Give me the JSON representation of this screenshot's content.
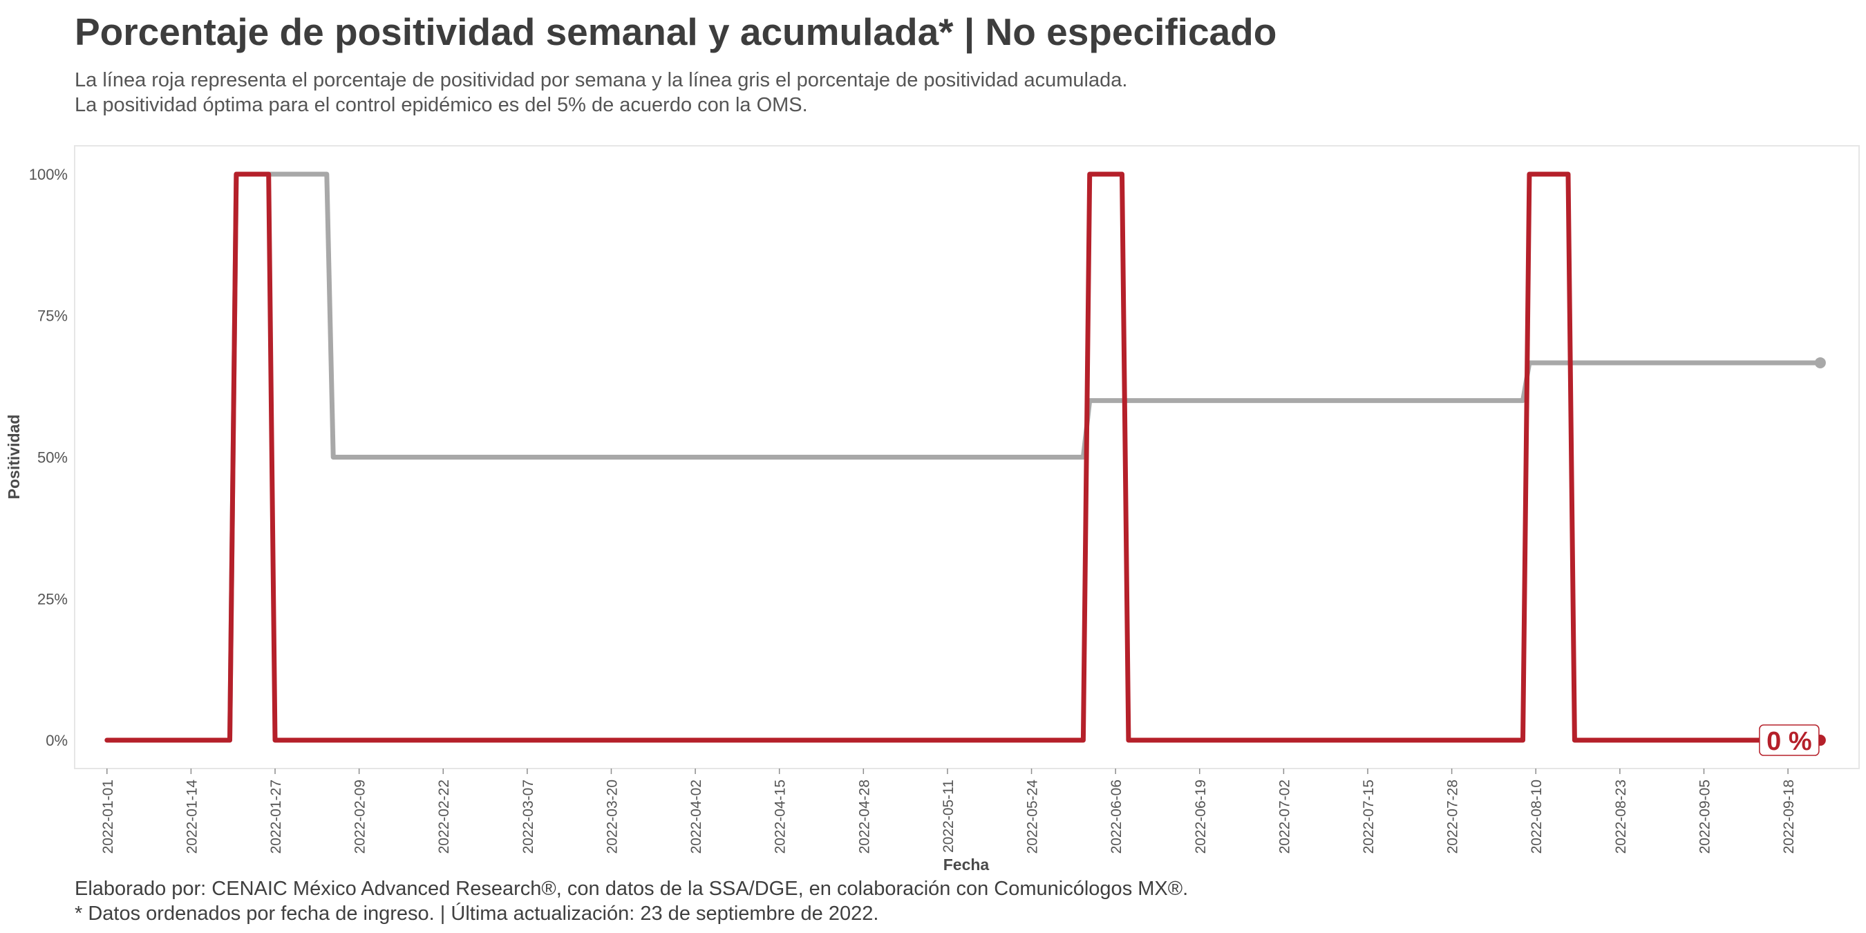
{
  "chart_data": {
    "type": "line",
    "title": "Porcentaje de positividad semanal y acumulada* | No especificado",
    "subtitle": [
      "La línea roja representa el porcentaje de positividad por semana y la línea gris el porcentaje de positividad acumulada.",
      "La positividad óptima para el control epidémico es del 5% de acuerdo con la OMS."
    ],
    "xlabel": "Fecha",
    "ylabel": "Positividad",
    "ylim": [
      -0.05,
      1.05
    ],
    "yticks": [
      0,
      0.25,
      0.5,
      0.75,
      1
    ],
    "ytick_labels": [
      "0%",
      "25%",
      "50%",
      "75%",
      "100%"
    ],
    "xlim": [
      "2021-12-27",
      "2022-09-29"
    ],
    "xticks": [
      "2022-01-01",
      "2022-01-14",
      "2022-01-27",
      "2022-02-09",
      "2022-02-22",
      "2022-03-07",
      "2022-03-20",
      "2022-04-02",
      "2022-04-15",
      "2022-04-28",
      "2022-05-11",
      "2022-05-24",
      "2022-06-06",
      "2022-06-19",
      "2022-07-02",
      "2022-07-15",
      "2022-07-28",
      "2022-08-10",
      "2022-08-23",
      "2022-09-05",
      "2022-09-18"
    ],
    "grid": false,
    "colors": {
      "weekly": "#b5202a",
      "cumulative": "#a8a8a8"
    },
    "series": [
      {
        "key": "cumulative",
        "x": [
          "2022-01-20",
          "2022-01-21",
          "2022-01-26",
          "2022-02-04",
          "2022-02-05",
          "2022-06-01",
          "2022-06-02",
          "2022-08-08",
          "2022-08-09",
          "2022-09-23"
        ],
        "values": [
          0,
          1,
          1,
          1,
          0.5,
          0.5,
          0.6,
          0.6,
          0.6667,
          0.6667
        ]
      },
      {
        "key": "weekly",
        "x": [
          "2022-01-01",
          "2022-01-20",
          "2022-01-21",
          "2022-01-26",
          "2022-01-27",
          "2022-06-01",
          "2022-06-02",
          "2022-06-07",
          "2022-06-08",
          "2022-08-08",
          "2022-08-09",
          "2022-08-15",
          "2022-08-16",
          "2022-09-23"
        ],
        "values": [
          0,
          0,
          1,
          1,
          0,
          0,
          1,
          1,
          0,
          0,
          1,
          1,
          0,
          0
        ]
      }
    ],
    "end_label": "0 %"
  },
  "caption": [
    "Elaborado por: CENAIC México Advanced Research®, con datos de la SSA/DGE, en colaboración con Comunicólogos MX®.",
    "* Datos ordenados por fecha de ingreso. | Última actualización: 23 de septiembre de 2022."
  ]
}
